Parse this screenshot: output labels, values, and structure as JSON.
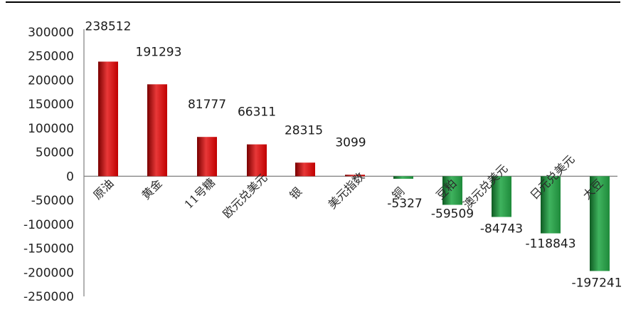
{
  "chart_data": {
    "type": "bar",
    "categories": [
      "原油",
      "黄金",
      "11号糖",
      "欧元兑美元",
      "银",
      "美元指数",
      "铜",
      "豆粕",
      "澳元兑美元",
      "日元兑美元",
      "大豆"
    ],
    "values": [
      238512,
      191293,
      81777,
      66311,
      28315,
      3099,
      -5327,
      -59509,
      -84743,
      -118843,
      -197241
    ],
    "data_labels": [
      "238512",
      "191293",
      "81777",
      "66311",
      "28315",
      "3099",
      "-5327",
      "-59509",
      "-84743",
      "-118843",
      "-197241"
    ],
    "ylim": [
      -250000,
      300000
    ],
    "yticks": [
      300000,
      250000,
      200000,
      150000,
      100000,
      50000,
      0,
      -50000,
      -100000,
      -150000,
      -200000,
      -250000
    ],
    "ytick_labels": [
      "300000",
      "250000",
      "200000",
      "150000",
      "100000",
      "50000",
      "0",
      "-50000",
      "-100000",
      "-150000",
      "-200000",
      "-250000"
    ],
    "grid": false,
    "legend": "none",
    "colors": {
      "positive": "#c00000",
      "positive_dark": "#7a0000",
      "positive_light": "#e83838",
      "negative": "#1f8a3b",
      "negative_dark": "#0e5a22",
      "negative_light": "#3fb35e",
      "axis": "#7f7f7f",
      "border": "#000000"
    }
  }
}
